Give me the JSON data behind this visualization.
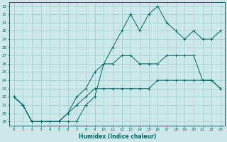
{
  "xlabel": "Humidex (Indice chaleur)",
  "x": [
    0,
    1,
    2,
    3,
    4,
    5,
    6,
    7,
    8,
    9,
    10,
    11,
    12,
    13,
    14,
    15,
    16,
    17,
    18,
    19,
    20,
    21,
    22,
    23
  ],
  "line1": [
    22,
    21,
    19,
    19,
    19,
    19,
    19,
    19,
    21,
    22,
    26,
    28,
    30,
    32,
    30,
    32,
    33,
    31,
    30,
    29,
    30,
    29,
    29,
    30
  ],
  "line2": [
    22,
    21,
    19,
    19,
    19,
    19,
    20,
    22,
    23,
    25,
    26,
    26,
    27,
    27,
    26,
    26,
    26,
    27,
    27,
    27,
    27,
    24,
    24,
    23
  ],
  "line3": [
    22,
    21,
    19,
    19,
    19,
    19,
    20,
    21,
    22,
    23,
    23,
    23,
    23,
    23,
    23,
    23,
    24,
    24,
    24,
    24,
    24,
    24,
    24,
    23
  ],
  "ylim": [
    19,
    33
  ],
  "xlim": [
    0,
    23
  ],
  "bg_color": "#cce8e8",
  "grid_color": "#99cccc",
  "line_color": "#006666",
  "marker": "+",
  "marker_size": 3.5,
  "linewidth": 0.7
}
